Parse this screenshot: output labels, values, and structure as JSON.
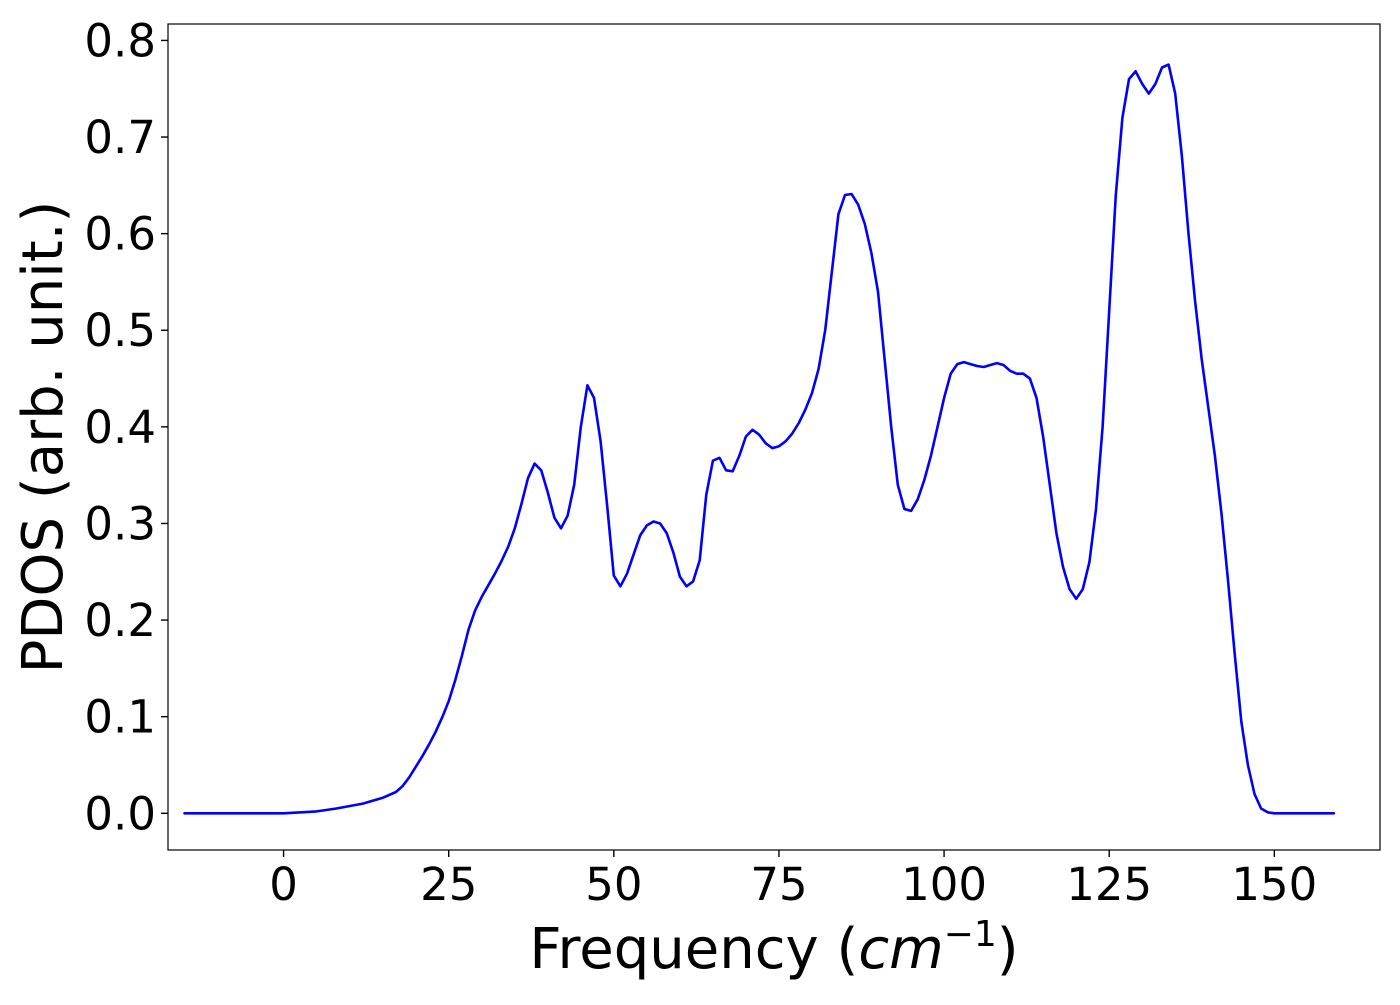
{
  "chart_data": {
    "type": "line",
    "title": "",
    "xlabel": "Frequency",
    "xlabel_unit_base": "cm",
    "xlabel_unit_exp": "−1",
    "ylabel": "PDOS (arb. unit.)",
    "xlim": [
      -17.5,
      166
    ],
    "ylim": [
      -0.038,
      0.817
    ],
    "xticks": [
      0,
      25,
      50,
      75,
      100,
      125,
      150
    ],
    "xtick_labels": [
      "0",
      "25",
      "50",
      "75",
      "100",
      "125",
      "150"
    ],
    "yticks": [
      0.0,
      0.1,
      0.2,
      0.3,
      0.4,
      0.5,
      0.6,
      0.7,
      0.8
    ],
    "ytick_labels": [
      "0.0",
      "0.1",
      "0.2",
      "0.3",
      "0.4",
      "0.5",
      "0.6",
      "0.7",
      "0.8"
    ],
    "grid": false,
    "series": [
      {
        "color": "#0000ff",
        "x": [
          -15,
          -5,
          0,
          5,
          8,
          12,
          15,
          17,
          18,
          19,
          20,
          21,
          22,
          23,
          24,
          25,
          26,
          27,
          28,
          29,
          30,
          31,
          32,
          33,
          34,
          35,
          36,
          37,
          38,
          39,
          40,
          41,
          42,
          43,
          44,
          45,
          46,
          47,
          48,
          49,
          50,
          51,
          52,
          53,
          54,
          55,
          56,
          57,
          58,
          59,
          60,
          61,
          62,
          63,
          64,
          65,
          66,
          67,
          68,
          69,
          70,
          71,
          72,
          73,
          74,
          75,
          76,
          77,
          78,
          79,
          80,
          81,
          82,
          83,
          84,
          85,
          86,
          87,
          88,
          89,
          90,
          91,
          92,
          93,
          94,
          95,
          96,
          97,
          98,
          99,
          100,
          101,
          102,
          103,
          104,
          105,
          106,
          107,
          108,
          109,
          110,
          111,
          112,
          113,
          114,
          115,
          116,
          117,
          118,
          119,
          120,
          121,
          122,
          123,
          124,
          125,
          126,
          127,
          128,
          129,
          130,
          131,
          132,
          133,
          134,
          135,
          136,
          137,
          138,
          139,
          140,
          141,
          142,
          143,
          144,
          145,
          146,
          147,
          148,
          149,
          150,
          155,
          159
        ],
        "y": [
          0.0,
          0.0,
          0.0,
          0.002,
          0.005,
          0.01,
          0.016,
          0.022,
          0.028,
          0.037,
          0.048,
          0.059,
          0.071,
          0.084,
          0.099,
          0.116,
          0.138,
          0.163,
          0.19,
          0.21,
          0.224,
          0.236,
          0.248,
          0.261,
          0.276,
          0.295,
          0.32,
          0.347,
          0.362,
          0.355,
          0.332,
          0.306,
          0.295,
          0.308,
          0.34,
          0.4,
          0.443,
          0.43,
          0.385,
          0.318,
          0.246,
          0.235,
          0.248,
          0.268,
          0.288,
          0.298,
          0.302,
          0.3,
          0.29,
          0.27,
          0.245,
          0.235,
          0.24,
          0.262,
          0.33,
          0.365,
          0.368,
          0.355,
          0.354,
          0.37,
          0.39,
          0.397,
          0.392,
          0.383,
          0.378,
          0.38,
          0.385,
          0.393,
          0.404,
          0.418,
          0.435,
          0.46,
          0.5,
          0.56,
          0.62,
          0.64,
          0.641,
          0.63,
          0.61,
          0.58,
          0.54,
          0.47,
          0.4,
          0.34,
          0.315,
          0.313,
          0.325,
          0.345,
          0.37,
          0.4,
          0.43,
          0.455,
          0.465,
          0.467,
          0.465,
          0.463,
          0.462,
          0.464,
          0.466,
          0.464,
          0.458,
          0.455,
          0.455,
          0.45,
          0.43,
          0.39,
          0.34,
          0.29,
          0.255,
          0.232,
          0.222,
          0.232,
          0.26,
          0.315,
          0.4,
          0.52,
          0.64,
          0.72,
          0.76,
          0.768,
          0.755,
          0.745,
          0.755,
          0.772,
          0.775,
          0.745,
          0.68,
          0.6,
          0.53,
          0.47,
          0.42,
          0.37,
          0.31,
          0.24,
          0.165,
          0.095,
          0.05,
          0.02,
          0.005,
          0.001,
          0.0,
          0.0,
          0.0
        ]
      }
    ]
  }
}
